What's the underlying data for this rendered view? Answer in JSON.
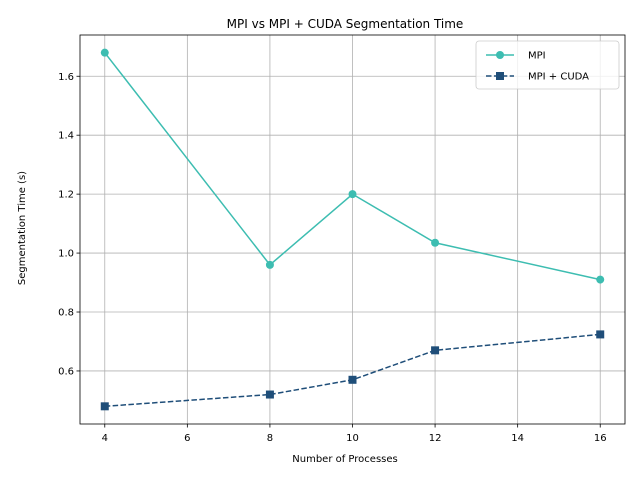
{
  "chart_data": {
    "type": "line",
    "title": "MPI vs MPI + CUDA Segmentation Time",
    "xlabel": "Number of Processes",
    "ylabel": "Segmentation Time (s)",
    "x": [
      4,
      8,
      10,
      12,
      16
    ],
    "xlim": [
      3.4,
      16.6
    ],
    "ylim": [
      0.42,
      1.74
    ],
    "xticks": [
      4,
      6,
      8,
      10,
      12,
      14,
      16
    ],
    "yticks": [
      0.6,
      0.8,
      1.0,
      1.2,
      1.4,
      1.6
    ],
    "xtick_labels": [
      "4",
      "6",
      "8",
      "10",
      "12",
      "14",
      "16"
    ],
    "ytick_labels": [
      "0.6",
      "0.8",
      "1.0",
      "1.2",
      "1.4",
      "1.6"
    ],
    "grid": true,
    "legend_position": "top-right",
    "series": [
      {
        "name": "MPI",
        "values": [
          1.68,
          0.96,
          1.2,
          1.035,
          0.91
        ],
        "color": "#3dbdb1",
        "marker": "circle",
        "linestyle": "solid"
      },
      {
        "name": "MPI + CUDA",
        "values": [
          0.48,
          0.52,
          0.57,
          0.67,
          0.724
        ],
        "color": "#1f4e79",
        "marker": "square",
        "linestyle": "dashed"
      }
    ]
  }
}
